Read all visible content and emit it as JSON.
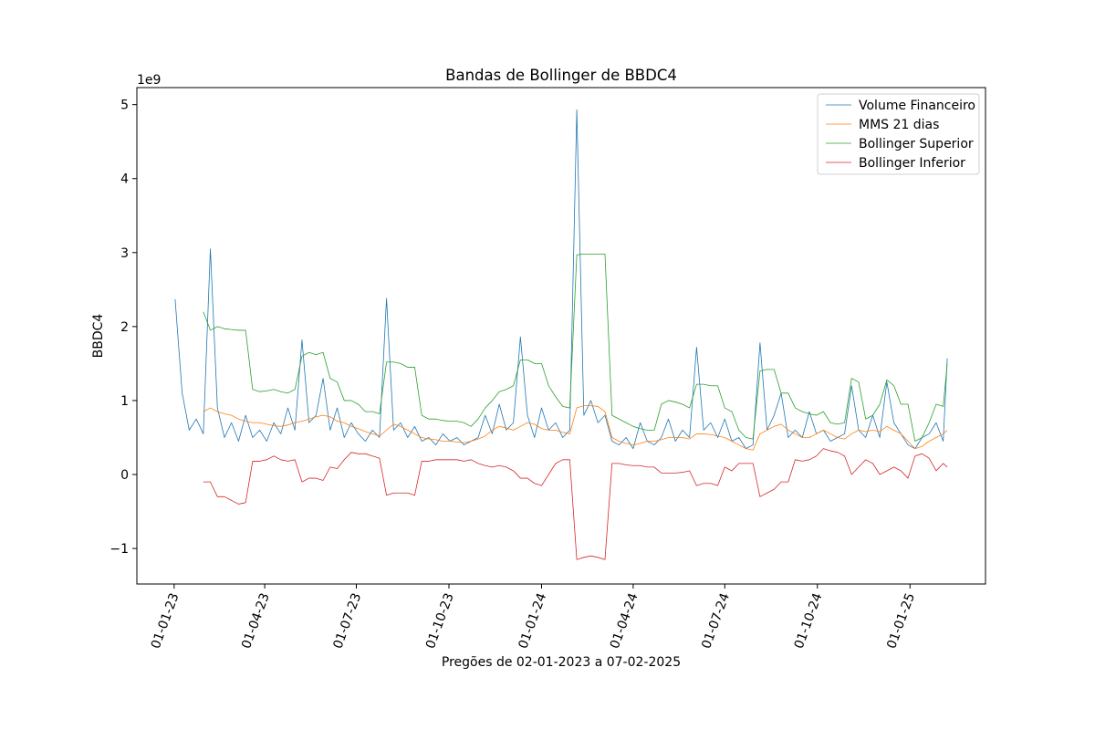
{
  "chart_data": {
    "type": "line",
    "title": "Bandas de Bollinger de BBDC4",
    "xlabel": "Pregões de 02-01-2023 a 07-02-2025",
    "ylabel": "BBDC4",
    "y_offset_label": "1e9",
    "legend": "upper right",
    "xlim": [
      "2022-11-25",
      "2025-03-17"
    ],
    "xticks": [
      {
        "value": "2023-01-01",
        "label": "01-01-23"
      },
      {
        "value": "2023-04-01",
        "label": "01-04-23"
      },
      {
        "value": "2023-07-01",
        "label": "01-07-23"
      },
      {
        "value": "2023-10-01",
        "label": "01-10-23"
      },
      {
        "value": "2024-01-01",
        "label": "01-01-24"
      },
      {
        "value": "2024-04-01",
        "label": "01-04-24"
      },
      {
        "value": "2024-07-01",
        "label": "01-07-24"
      },
      {
        "value": "2024-10-01",
        "label": "01-10-24"
      },
      {
        "value": "2025-01-01",
        "label": "01-01-25"
      }
    ],
    "ylim": [
      -1.48,
      5.23
    ],
    "yticks": [
      {
        "value": -1,
        "label": "−1"
      },
      0,
      1,
      2,
      3,
      4,
      5
    ],
    "x": [
      "2023-01-02",
      "2023-01-09",
      "2023-01-16",
      "2023-01-23",
      "2023-01-30",
      "2023-02-06",
      "2023-02-13",
      "2023-02-20",
      "2023-02-27",
      "2023-03-06",
      "2023-03-13",
      "2023-03-20",
      "2023-03-27",
      "2023-04-03",
      "2023-04-10",
      "2023-04-17",
      "2023-04-24",
      "2023-05-01",
      "2023-05-08",
      "2023-05-15",
      "2023-05-22",
      "2023-05-29",
      "2023-06-05",
      "2023-06-12",
      "2023-06-19",
      "2023-06-26",
      "2023-07-03",
      "2023-07-10",
      "2023-07-17",
      "2023-07-24",
      "2023-07-31",
      "2023-08-07",
      "2023-08-14",
      "2023-08-21",
      "2023-08-28",
      "2023-09-04",
      "2023-09-11",
      "2023-09-18",
      "2023-09-25",
      "2023-10-02",
      "2023-10-09",
      "2023-10-16",
      "2023-10-23",
      "2023-10-30",
      "2023-11-06",
      "2023-11-13",
      "2023-11-20",
      "2023-11-27",
      "2023-12-04",
      "2023-12-11",
      "2023-12-18",
      "2023-12-25",
      "2024-01-01",
      "2024-01-08",
      "2024-01-15",
      "2024-01-22",
      "2024-01-29",
      "2024-02-05",
      "2024-02-12",
      "2024-02-19",
      "2024-02-26",
      "2024-03-04",
      "2024-03-11",
      "2024-03-18",
      "2024-03-25",
      "2024-04-01",
      "2024-04-08",
      "2024-04-15",
      "2024-04-22",
      "2024-04-29",
      "2024-05-06",
      "2024-05-13",
      "2024-05-20",
      "2024-05-27",
      "2024-06-03",
      "2024-06-10",
      "2024-06-17",
      "2024-06-24",
      "2024-07-01",
      "2024-07-08",
      "2024-07-15",
      "2024-07-22",
      "2024-07-29",
      "2024-08-05",
      "2024-08-12",
      "2024-08-19",
      "2024-08-26",
      "2024-09-02",
      "2024-09-09",
      "2024-09-16",
      "2024-09-23",
      "2024-09-30",
      "2024-10-07",
      "2024-10-14",
      "2024-10-21",
      "2024-10-28",
      "2024-11-04",
      "2024-11-11",
      "2024-11-18",
      "2024-11-25",
      "2024-12-02",
      "2024-12-09",
      "2024-12-16",
      "2024-12-23",
      "2024-12-30",
      "2025-01-06",
      "2025-01-13",
      "2025-01-20",
      "2025-01-27",
      "2025-02-03",
      "2025-02-07"
    ],
    "series": [
      {
        "name": "Volume Financeiro",
        "color": "#1f77b4",
        "values": [
          2.37,
          1.1,
          0.6,
          0.75,
          0.55,
          3.05,
          0.9,
          0.5,
          0.7,
          0.45,
          0.8,
          0.5,
          0.6,
          0.45,
          0.7,
          0.55,
          0.9,
          0.6,
          1.82,
          0.7,
          0.8,
          1.3,
          0.6,
          0.9,
          0.5,
          0.7,
          0.55,
          0.45,
          0.6,
          0.5,
          2.38,
          0.6,
          0.7,
          0.5,
          0.65,
          0.45,
          0.5,
          0.4,
          0.55,
          0.45,
          0.5,
          0.4,
          0.45,
          0.5,
          0.8,
          0.55,
          0.95,
          0.6,
          0.7,
          1.86,
          0.8,
          0.5,
          0.9,
          0.6,
          0.7,
          0.5,
          0.6,
          4.93,
          0.8,
          1.0,
          0.7,
          0.8,
          0.45,
          0.4,
          0.5,
          0.35,
          0.7,
          0.45,
          0.4,
          0.5,
          0.75,
          0.45,
          0.6,
          0.5,
          1.72,
          0.6,
          0.7,
          0.5,
          0.75,
          0.45,
          0.5,
          0.35,
          0.4,
          1.78,
          0.6,
          0.8,
          1.1,
          0.5,
          0.6,
          0.5,
          0.85,
          0.55,
          0.6,
          0.45,
          0.5,
          0.55,
          1.2,
          0.6,
          0.5,
          0.8,
          0.5,
          1.25,
          0.7,
          0.55,
          0.4,
          0.35,
          0.5,
          0.55,
          0.7,
          0.45,
          1.57
        ]
      },
      {
        "name": "MMS 21 dias",
        "color": "#ff7f0e",
        "values": [
          null,
          null,
          null,
          null,
          0.85,
          0.9,
          0.85,
          0.82,
          0.8,
          0.75,
          0.72,
          0.7,
          0.7,
          0.68,
          0.66,
          0.65,
          0.67,
          0.7,
          0.72,
          0.75,
          0.78,
          0.8,
          0.78,
          0.72,
          0.7,
          0.65,
          0.62,
          0.58,
          0.55,
          0.52,
          0.6,
          0.68,
          0.65,
          0.6,
          0.55,
          0.5,
          0.48,
          0.47,
          0.45,
          0.45,
          0.44,
          0.43,
          0.45,
          0.48,
          0.52,
          0.6,
          0.65,
          0.63,
          0.6,
          0.65,
          0.7,
          0.68,
          0.62,
          0.6,
          0.6,
          0.57,
          0.55,
          0.9,
          0.93,
          0.93,
          0.92,
          0.85,
          0.5,
          0.45,
          0.42,
          0.4,
          0.42,
          0.45,
          0.45,
          0.47,
          0.5,
          0.5,
          0.5,
          0.48,
          0.55,
          0.55,
          0.54,
          0.52,
          0.5,
          0.45,
          0.4,
          0.35,
          0.33,
          0.55,
          0.6,
          0.65,
          0.68,
          0.6,
          0.55,
          0.5,
          0.5,
          0.55,
          0.6,
          0.55,
          0.5,
          0.48,
          0.55,
          0.6,
          0.58,
          0.6,
          0.58,
          0.65,
          0.6,
          0.55,
          0.45,
          0.35,
          0.38,
          0.45,
          0.5,
          0.55,
          0.6
        ]
      },
      {
        "name": "Bollinger Superior",
        "color": "#2ca02c",
        "values": [
          null,
          null,
          null,
          null,
          2.2,
          1.95,
          2.0,
          1.97,
          1.96,
          1.95,
          1.95,
          1.15,
          1.12,
          1.13,
          1.15,
          1.12,
          1.1,
          1.15,
          1.6,
          1.65,
          1.62,
          1.65,
          1.3,
          1.25,
          1.0,
          1.0,
          0.95,
          0.85,
          0.85,
          0.82,
          1.52,
          1.52,
          1.5,
          1.45,
          1.45,
          0.8,
          0.75,
          0.75,
          0.73,
          0.72,
          0.72,
          0.7,
          0.65,
          0.75,
          0.9,
          1.0,
          1.12,
          1.15,
          1.2,
          1.55,
          1.55,
          1.5,
          1.5,
          1.2,
          1.05,
          0.92,
          0.9,
          2.97,
          2.98,
          2.98,
          2.98,
          2.98,
          0.8,
          0.75,
          0.7,
          0.65,
          0.62,
          0.6,
          0.6,
          0.95,
          1.0,
          0.98,
          0.95,
          0.9,
          1.22,
          1.22,
          1.2,
          1.2,
          0.9,
          0.85,
          0.6,
          0.5,
          0.48,
          1.4,
          1.42,
          1.42,
          1.1,
          1.1,
          0.9,
          0.85,
          0.82,
          0.8,
          0.85,
          0.7,
          0.68,
          0.7,
          1.3,
          1.25,
          0.75,
          0.8,
          0.95,
          1.28,
          1.2,
          0.95,
          0.95,
          0.45,
          0.5,
          0.7,
          0.95,
          0.92,
          1.5
        ]
      },
      {
        "name": "Bollinger Inferior",
        "color": "#d62728",
        "values": [
          null,
          null,
          null,
          null,
          -0.1,
          -0.1,
          -0.3,
          -0.3,
          -0.35,
          -0.4,
          -0.38,
          0.18,
          0.18,
          0.2,
          0.25,
          0.2,
          0.18,
          0.2,
          -0.1,
          -0.05,
          -0.05,
          -0.08,
          0.1,
          0.08,
          0.2,
          0.3,
          0.28,
          0.28,
          0.25,
          0.22,
          -0.28,
          -0.25,
          -0.25,
          -0.25,
          -0.28,
          0.18,
          0.18,
          0.2,
          0.2,
          0.2,
          0.2,
          0.18,
          0.2,
          0.15,
          0.12,
          0.1,
          0.12,
          0.1,
          0.05,
          -0.05,
          -0.05,
          -0.12,
          -0.15,
          0.0,
          0.15,
          0.2,
          0.2,
          -1.15,
          -1.12,
          -1.1,
          -1.12,
          -1.15,
          0.15,
          0.15,
          0.13,
          0.12,
          0.12,
          0.1,
          0.1,
          0.02,
          0.02,
          0.02,
          0.03,
          0.05,
          -0.15,
          -0.12,
          -0.12,
          -0.15,
          0.1,
          0.05,
          0.15,
          0.15,
          0.15,
          -0.3,
          -0.25,
          -0.2,
          -0.1,
          -0.1,
          0.2,
          0.18,
          0.2,
          0.25,
          0.35,
          0.32,
          0.3,
          0.25,
          0.0,
          0.1,
          0.2,
          0.15,
          0.0,
          0.05,
          0.1,
          0.05,
          -0.05,
          0.25,
          0.28,
          0.22,
          0.05,
          0.15,
          0.1
        ]
      }
    ]
  }
}
